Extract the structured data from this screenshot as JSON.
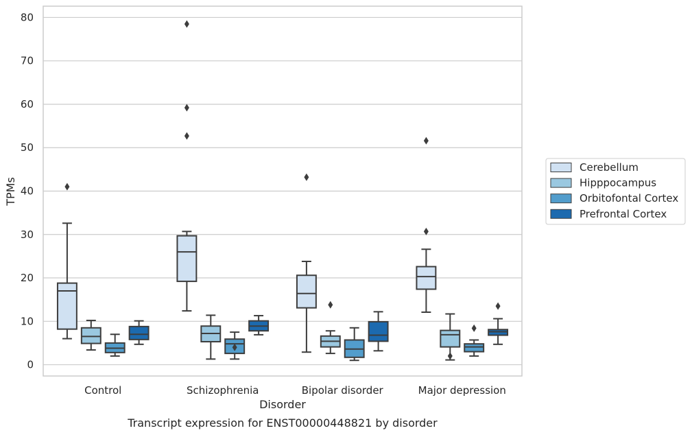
{
  "caption": "Transcript expression for ENST00000448821 by disorder",
  "chart_data": {
    "type": "box",
    "title": "",
    "xlabel": "Disorder",
    "ylabel": "TPMs",
    "ylim": [
      -2.6,
      82.6
    ],
    "yticks": [
      0,
      10,
      20,
      30,
      40,
      50,
      60,
      70,
      80
    ],
    "grid": "horizontal",
    "legend_position": "right, outside plot",
    "categories": [
      "Control",
      "Schizophrenia",
      "Bipolar disorder",
      "Major depression"
    ],
    "series": [
      {
        "name": "Cerebellum",
        "color": "#d0e1f2",
        "boxes": [
          {
            "whisker_low": 6.0,
            "q1": 8.2,
            "median": 17.0,
            "q3": 18.8,
            "whisker_high": 32.6,
            "outliers": [
              41.0
            ]
          },
          {
            "whisker_low": 12.4,
            "q1": 19.2,
            "median": 26.0,
            "q3": 29.7,
            "whisker_high": 30.7,
            "outliers": [
              52.7,
              59.2,
              78.5
            ]
          },
          {
            "whisker_low": 2.9,
            "q1": 13.1,
            "median": 16.4,
            "q3": 20.6,
            "whisker_high": 23.8,
            "outliers": [
              43.2
            ]
          },
          {
            "whisker_low": 12.1,
            "q1": 17.4,
            "median": 20.3,
            "q3": 22.6,
            "whisker_high": 26.6,
            "outliers": [
              51.6,
              30.7
            ]
          }
        ]
      },
      {
        "name": "Hipppocampus",
        "color": "#9ac8e0",
        "boxes": [
          {
            "whisker_low": 3.4,
            "q1": 4.9,
            "median": 6.5,
            "q3": 8.5,
            "whisker_high": 10.2,
            "outliers": []
          },
          {
            "whisker_low": 1.3,
            "q1": 5.3,
            "median": 7.2,
            "q3": 8.9,
            "whisker_high": 11.4,
            "outliers": []
          },
          {
            "whisker_low": 2.6,
            "q1": 4.1,
            "median": 5.4,
            "q3": 6.6,
            "whisker_high": 7.8,
            "outliers": [
              13.8
            ]
          },
          {
            "whisker_low": 1.1,
            "q1": 4.1,
            "median": 6.9,
            "q3": 7.9,
            "whisker_high": 11.7,
            "outliers": [
              2.0
            ]
          }
        ]
      },
      {
        "name": "Orbitofontal Cortex",
        "color": "#529dcc",
        "boxes": [
          {
            "whisker_low": 2.0,
            "q1": 2.8,
            "median": 3.8,
            "q3": 5.0,
            "whisker_high": 7.0,
            "outliers": []
          },
          {
            "whisker_low": 1.3,
            "q1": 2.6,
            "median": 4.8,
            "q3": 5.9,
            "whisker_high": 7.5,
            "outliers": [
              4.0
            ]
          },
          {
            "whisker_low": 1.0,
            "q1": 1.7,
            "median": 3.6,
            "q3": 5.7,
            "whisker_high": 8.5,
            "outliers": []
          },
          {
            "whisker_low": 2.0,
            "q1": 3.0,
            "median": 4.1,
            "q3": 4.8,
            "whisker_high": 5.7,
            "outliers": [
              8.4
            ]
          }
        ]
      },
      {
        "name": "Prefrontal Cortex",
        "color": "#1c6aaf",
        "boxes": [
          {
            "whisker_low": 4.7,
            "q1": 5.8,
            "median": 7.0,
            "q3": 8.8,
            "whisker_high": 10.1,
            "outliers": []
          },
          {
            "whisker_low": 6.9,
            "q1": 7.8,
            "median": 8.9,
            "q3": 10.1,
            "whisker_high": 11.3,
            "outliers": []
          },
          {
            "whisker_low": 3.2,
            "q1": 5.4,
            "median": 6.8,
            "q3": 9.9,
            "whisker_high": 12.2,
            "outliers": []
          },
          {
            "whisker_low": 4.7,
            "q1": 6.8,
            "median": 7.6,
            "q3": 8.1,
            "whisker_high": 10.6,
            "outliers": [
              13.5
            ]
          }
        ]
      }
    ]
  }
}
